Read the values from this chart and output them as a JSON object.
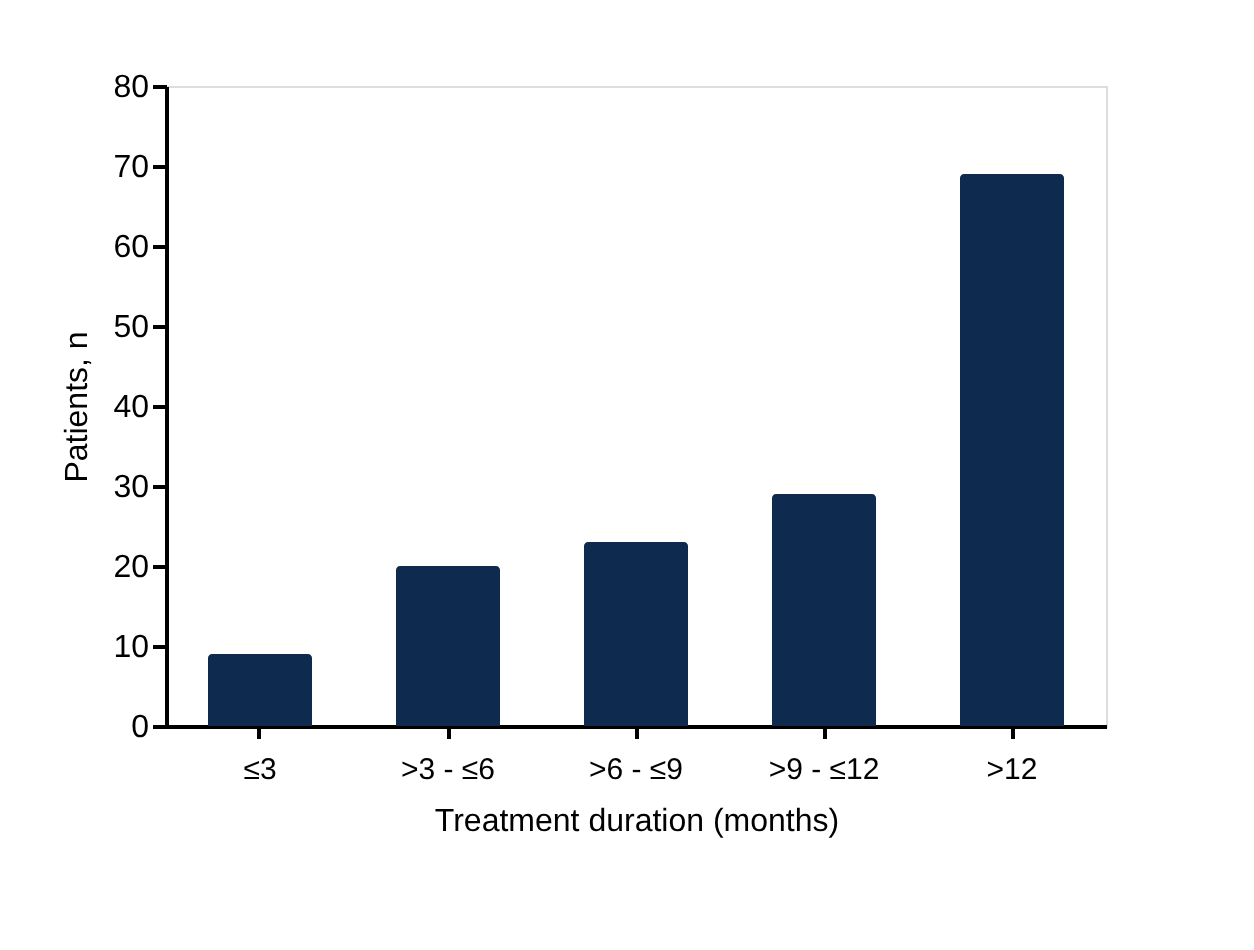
{
  "chart_data": {
    "type": "bar",
    "categories": [
      "≤3",
      ">3 - ≤6",
      ">6 - ≤9",
      ">9 - ≤12",
      ">12"
    ],
    "values": [
      9,
      20,
      23,
      29,
      69
    ],
    "color": "#0e2a4e",
    "xlabel": "Treatment duration (months)",
    "ylabel": "Patients, n",
    "ylim": [
      0,
      80
    ],
    "yticks": [
      0,
      10,
      20,
      30,
      40,
      50,
      60,
      70,
      80
    ],
    "grid": false
  }
}
